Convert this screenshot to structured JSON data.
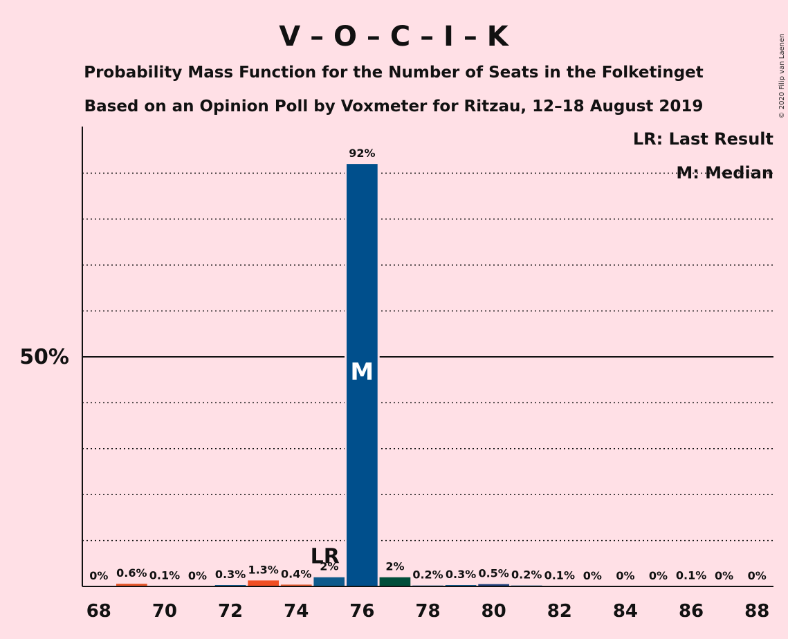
{
  "title": "V – O – C – I – K",
  "subtitle1": "Probability Mass Function for the Number of Seats in the Folketinget",
  "subtitle2": "Based on an Opinion Poll by Voxmeter for Ritzau, 12–18 August 2019",
  "copyright": "© 2020 Filip van Laenen",
  "legend": {
    "last_result": "LR: Last Result",
    "median": "M: Median"
  },
  "y_tick_label": "50%",
  "markers": {
    "last_result_label": "LR",
    "median_label": "M"
  },
  "colors": {
    "background": "#FFE0E6",
    "default_bar": "#0E5A8C",
    "median_bar": "#004F8C",
    "bar_73": "#F04E23",
    "bar_69": "#E5592E",
    "bar_74": "#E5592E",
    "bar_77": "#004E3A",
    "bar_80": "#1F3E7A"
  },
  "chart_data": {
    "type": "bar",
    "x": [
      68,
      69,
      70,
      71,
      72,
      73,
      74,
      75,
      76,
      77,
      78,
      79,
      80,
      81,
      82,
      83,
      84,
      85,
      86,
      87,
      88
    ],
    "values": [
      0,
      0.6,
      0.1,
      0,
      0.3,
      1.3,
      0.4,
      2,
      92,
      2,
      0.2,
      0.3,
      0.5,
      0.2,
      0.1,
      0,
      0,
      0,
      0.1,
      0,
      0
    ],
    "labels": [
      "0%",
      "0.6%",
      "0.1%",
      "0%",
      "0.3%",
      "1.3%",
      "0.4%",
      "2%",
      "92%",
      "2%",
      "0.2%",
      "0.3%",
      "0.5%",
      "0.2%",
      "0.1%",
      "0%",
      "0%",
      "0%",
      "0.1%",
      "0%",
      "0%"
    ],
    "bar_colors": [
      "#0E5A8C",
      "#E5592E",
      "#0E5A8C",
      "#0E5A8C",
      "#0E5A8C",
      "#F04E23",
      "#E5592E",
      "#0E5A8C",
      "#004F8C",
      "#004E3A",
      "#0E5A8C",
      "#0E5A8C",
      "#1F3E7A",
      "#0E5A8C",
      "#0E5A8C",
      "#0E5A8C",
      "#0E5A8C",
      "#0E5A8C",
      "#0E5A8C",
      "#0E5A8C",
      "#0E5A8C"
    ],
    "x_tick_labels": [
      "68",
      "70",
      "72",
      "74",
      "76",
      "78",
      "80",
      "82",
      "84",
      "86",
      "88"
    ],
    "x_tick_values": [
      68,
      70,
      72,
      74,
      76,
      78,
      80,
      82,
      84,
      86,
      88
    ],
    "ylim": [
      0,
      100
    ],
    "gridlines": [
      10,
      20,
      30,
      40,
      60,
      70,
      80,
      90
    ],
    "major_line": 50,
    "last_result": 75,
    "median": 76
  }
}
